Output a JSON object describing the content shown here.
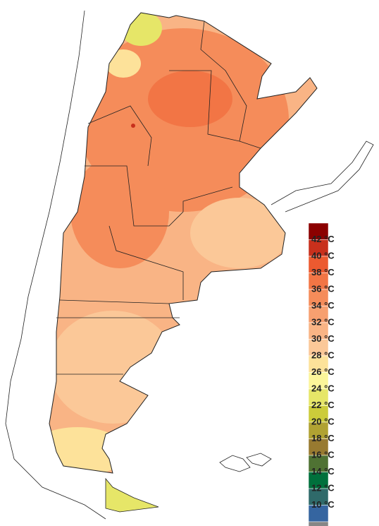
{
  "legend": {
    "labels": [
      "42 °C",
      "40 °C",
      "38 °C",
      "36 °C",
      "34 °C",
      "32 °C",
      "30 °C",
      "28 °C",
      "26 °C",
      "24 °C",
      "22 °C",
      "20 °C",
      "18 °C",
      "16 °C",
      "14 °C",
      "12 °C",
      "10 °C"
    ],
    "colors": [
      "#8b0000",
      "#c8301c",
      "#ec5a30",
      "#f27545",
      "#f58c5a",
      "#f7a070",
      "#f9b485",
      "#fbc898",
      "#fde29a",
      "#fcf59a",
      "#e6e668",
      "#cccc3a",
      "#b0a232",
      "#987a30",
      "#4f7233",
      "#00703c",
      "#2f6a6a",
      "#3565a0",
      "#868686"
    ]
  }
}
